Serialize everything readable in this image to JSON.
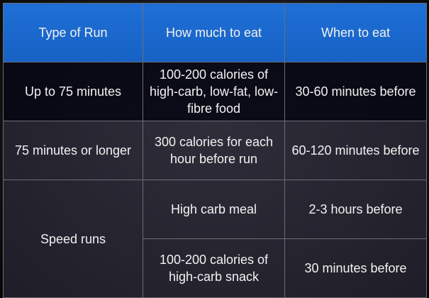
{
  "headers": [
    "Type of Run",
    "How much to eat",
    "When to eat"
  ],
  "rows": [
    {
      "type": "Up to 75 minutes",
      "amount": "100-200 calories of high-carb, low-fat, low-fibre food",
      "timing": "30-60 minutes before"
    },
    {
      "type": "75 minutes or longer",
      "amount": "300 calories for each hour before run",
      "timing": "60-120 minutes before"
    },
    {
      "type": "Speed runs",
      "amount": "High carb meal",
      "timing": "2-3 hours before"
    },
    {
      "amount": "100-200 calories of high-carb snack",
      "timing": "30 minutes before"
    }
  ],
  "colors": {
    "header_background": "#1f6fd6",
    "text": "#f2f2f2",
    "grid_line": "#6a6f78"
  }
}
